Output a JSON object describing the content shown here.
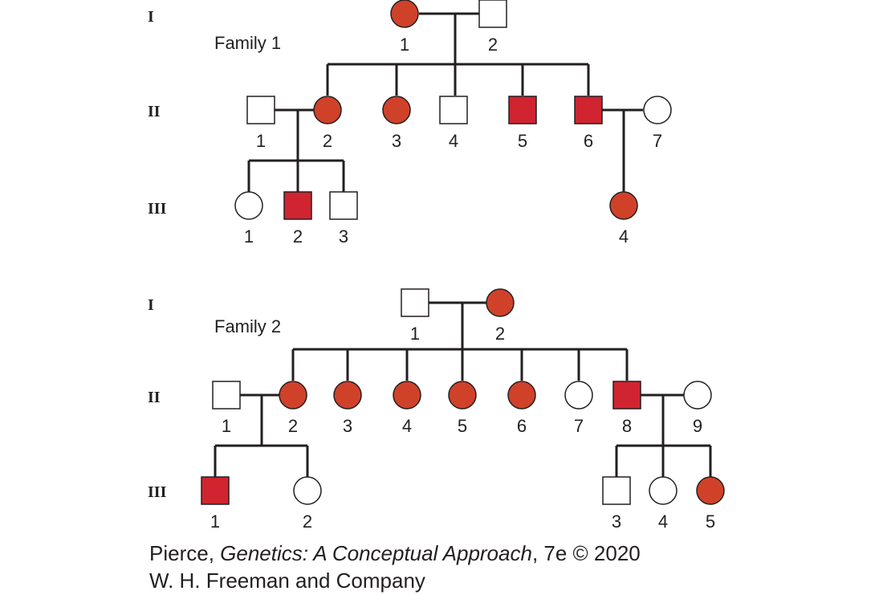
{
  "colors": {
    "affected_female": "#d0412a",
    "affected_male": "#d02430",
    "unaffected": "#ffffff",
    "line": "#231f20"
  },
  "families": [
    {
      "title": "Family 1",
      "generations": [
        "I",
        "II",
        "III"
      ],
      "individuals": [
        {
          "gen": "I",
          "num": "1",
          "sex": "female",
          "affected": true
        },
        {
          "gen": "I",
          "num": "2",
          "sex": "male",
          "affected": false
        },
        {
          "gen": "II",
          "num": "1",
          "sex": "male",
          "affected": false
        },
        {
          "gen": "II",
          "num": "2",
          "sex": "female",
          "affected": true
        },
        {
          "gen": "II",
          "num": "3",
          "sex": "female",
          "affected": true
        },
        {
          "gen": "II",
          "num": "4",
          "sex": "male",
          "affected": false
        },
        {
          "gen": "II",
          "num": "5",
          "sex": "male",
          "affected": true
        },
        {
          "gen": "II",
          "num": "6",
          "sex": "male",
          "affected": true
        },
        {
          "gen": "II",
          "num": "7",
          "sex": "female",
          "affected": false
        },
        {
          "gen": "III",
          "num": "1",
          "sex": "female",
          "affected": false
        },
        {
          "gen": "III",
          "num": "2",
          "sex": "male",
          "affected": true
        },
        {
          "gen": "III",
          "num": "3",
          "sex": "male",
          "affected": false
        },
        {
          "gen": "III",
          "num": "4",
          "sex": "female",
          "affected": true
        }
      ]
    },
    {
      "title": "Family 2",
      "generations": [
        "I",
        "II",
        "III"
      ],
      "individuals": [
        {
          "gen": "I",
          "num": "1",
          "sex": "male",
          "affected": false
        },
        {
          "gen": "I",
          "num": "2",
          "sex": "female",
          "affected": true
        },
        {
          "gen": "II",
          "num": "1",
          "sex": "male",
          "affected": false
        },
        {
          "gen": "II",
          "num": "2",
          "sex": "female",
          "affected": true
        },
        {
          "gen": "II",
          "num": "3",
          "sex": "female",
          "affected": true
        },
        {
          "gen": "II",
          "num": "4",
          "sex": "female",
          "affected": true
        },
        {
          "gen": "II",
          "num": "5",
          "sex": "female",
          "affected": true
        },
        {
          "gen": "II",
          "num": "6",
          "sex": "female",
          "affected": true
        },
        {
          "gen": "II",
          "num": "7",
          "sex": "female",
          "affected": false
        },
        {
          "gen": "II",
          "num": "8",
          "sex": "male",
          "affected": true
        },
        {
          "gen": "II",
          "num": "9",
          "sex": "female",
          "affected": false
        },
        {
          "gen": "III",
          "num": "1",
          "sex": "male",
          "affected": true
        },
        {
          "gen": "III",
          "num": "2",
          "sex": "female",
          "affected": false
        },
        {
          "gen": "III",
          "num": "3",
          "sex": "male",
          "affected": false
        },
        {
          "gen": "III",
          "num": "4",
          "sex": "female",
          "affected": false
        },
        {
          "gen": "III",
          "num": "5",
          "sex": "female",
          "affected": true
        }
      ]
    }
  ],
  "credit": {
    "line1_prefix": "Pierce, ",
    "line1_book": "Genetics: A Conceptual Approach",
    "line1_suffix": ", 7e © 2020",
    "line2": "W. H. Freeman and Company"
  }
}
